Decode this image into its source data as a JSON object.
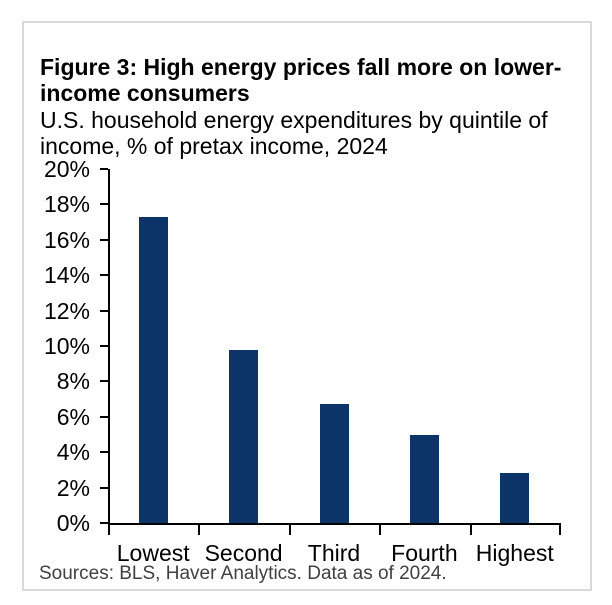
{
  "card": {
    "title_line1": "Figure 3: High energy prices fall more on lower-",
    "title_line2": "income consumers",
    "subtitle_line1": "U.S. household energy expenditures by quintile of",
    "subtitle_line2": "income, % of pretax income, 2024",
    "source": "Sources: BLS, Haver Analytics. Data as of 2024.",
    "border_color": "#d9d9d9"
  },
  "chart_data": {
    "type": "bar",
    "title": "Figure 3: High energy prices fall more on lower-income consumers",
    "subtitle": "U.S. household energy expenditures by quintile of income, % of pretax income, 2024",
    "source": "Sources: BLS, Haver Analytics. Data as of 2024.",
    "categories": [
      "Lowest",
      "Second",
      "Third",
      "Fourth",
      "Highest"
    ],
    "values": [
      17.3,
      9.8,
      6.7,
      5.0,
      2.8
    ],
    "xlabel": "",
    "ylabel": "",
    "ylim": [
      0,
      20
    ],
    "ytick_step": 2,
    "ytick_labels": [
      "0%",
      "2%",
      "4%",
      "6%",
      "8%",
      "10%",
      "12%",
      "14%",
      "16%",
      "18%",
      "20%"
    ],
    "ytick_format": "percent",
    "grid": false,
    "legend_position": "none",
    "bar_color": "#0d3468",
    "axis_color": "#000000",
    "text_color": "#000000"
  }
}
